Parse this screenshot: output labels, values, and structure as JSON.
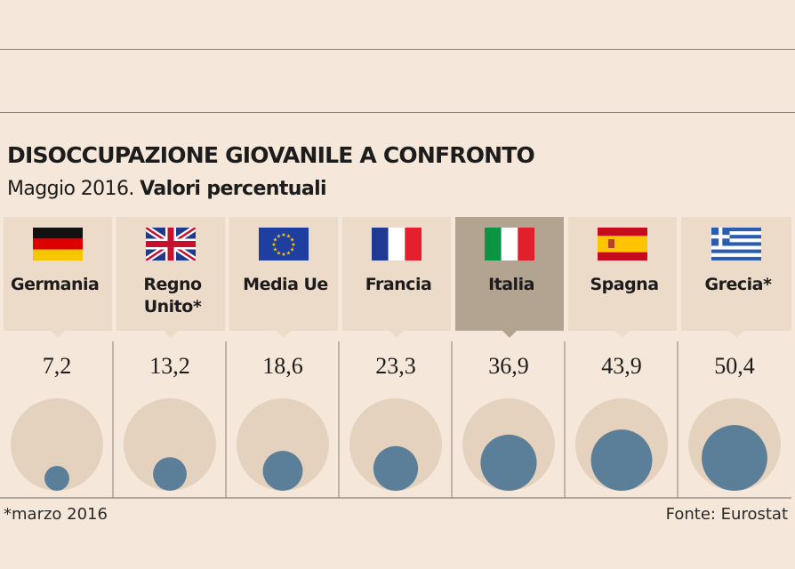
{
  "title": "DISOCCUPAZIONE GIOVANILE A CONFRONTO",
  "subtitle_date": "Maggio 2016.",
  "subtitle_units": "Valori percentuali",
  "footnote": "*marzo 2016",
  "source": "Fonte: Eurostat",
  "colors": {
    "background": "#f5e8da",
    "card": "#eddbc9",
    "card_highlight": "#b3a391",
    "outer_circle": "#e4d2bf",
    "value_circle": "#5b7f99"
  },
  "countries": [
    {
      "label": "Germania",
      "flag": "germany-flag",
      "highlight": false
    },
    {
      "label": "Regno\nUnito*",
      "flag": "uk-flag",
      "highlight": false
    },
    {
      "label": "Media Ue",
      "flag": "eu-flag",
      "highlight": false
    },
    {
      "label": "Francia",
      "flag": "france-flag",
      "highlight": false
    },
    {
      "label": "Italia",
      "flag": "italy-flag",
      "highlight": true
    },
    {
      "label": "Spagna",
      "flag": "spain-flag",
      "highlight": false
    },
    {
      "label": "Grecia*",
      "flag": "greece-flag",
      "highlight": false
    }
  ],
  "chart_data": {
    "type": "bubble",
    "categories": [
      "Germania",
      "Regno Unito*",
      "Media Ue",
      "Francia",
      "Italia",
      "Spagna",
      "Grecia*"
    ],
    "values": [
      7.2,
      13.2,
      18.6,
      23.3,
      36.9,
      43.9,
      50.4
    ],
    "value_labels": [
      "7,2",
      "13,2",
      "18,6",
      "23,3",
      "36,9",
      "43,9",
      "50,4"
    ],
    "reference_max": 100
  }
}
